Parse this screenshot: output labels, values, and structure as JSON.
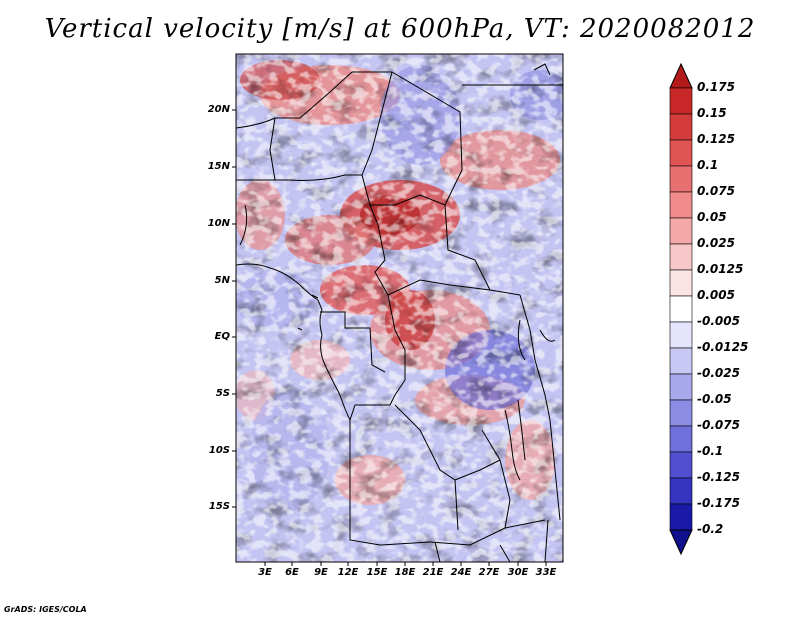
{
  "title": "Vertical velocity [m/s] at 600hPa, VT: 2020082012",
  "map": {
    "lat_labels": [
      "20N",
      "15N",
      "10N",
      "5N",
      "EQ",
      "5S",
      "10S",
      "15S"
    ],
    "lon_labels": [
      "3E",
      "6E",
      "9E",
      "12E",
      "15E",
      "18E",
      "21E",
      "24E",
      "27E",
      "30E",
      "33E"
    ]
  },
  "colorbar": {
    "labels": [
      "0.175",
      "0.15",
      "0.125",
      "0.1",
      "0.075",
      "0.05",
      "0.025",
      "0.0125",
      "0.005",
      "-0.005",
      "-0.0125",
      "-0.025",
      "-0.05",
      "-0.075",
      "-0.1",
      "-0.125",
      "-0.175",
      "-0.2"
    ],
    "colors": [
      "#b41a1a",
      "#c82828",
      "#d43c3c",
      "#e05454",
      "#e87070",
      "#f08c8c",
      "#f4a8a8",
      "#f8c8c8",
      "#fce4e4",
      "#ffffff",
      "#e4e4fc",
      "#c8c8f4",
      "#a8a8ec",
      "#8c8ce4",
      "#7070dc",
      "#5050d0",
      "#3434c0",
      "#1a1aa8",
      "#10108c"
    ]
  },
  "footer": "GrADS: IGES/COLA"
}
